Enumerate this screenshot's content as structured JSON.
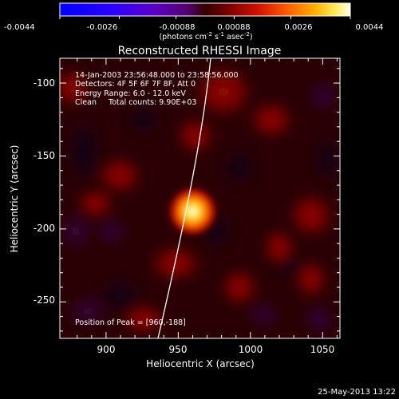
{
  "colorbar": {
    "tick_labels": [
      "-0.0044",
      "-0.0026",
      "-0.00088",
      "0.00088",
      "0.0026",
      "0.0044"
    ],
    "range": [
      -0.0044,
      0.0044
    ],
    "unit_prefix": "(photons cm",
    "unit_exp1": "-2",
    "unit_mid": " s",
    "unit_exp2": "-1",
    "unit_mid2": " asec",
    "unit_exp3": "-2",
    "unit_suffix": ")"
  },
  "image": {
    "title": "Reconstructed RHESSI Image",
    "xlabel": "Heliocentric X (arcsec)",
    "ylabel": "Heliocentric Y (arcsec)",
    "xlim": [
      868,
      1062
    ],
    "ylim": [
      -275,
      -83
    ],
    "xticks": [
      "900",
      "950",
      "1000",
      "1050"
    ],
    "yticks": [
      "-100",
      "-150",
      "-200",
      "-250"
    ],
    "info_lines": [
      "14-Jan-2003 23:56:48.000 to 23:58:56.000",
      "Detectors: 4F 5F 6F 7F 8F, Att 0",
      "Energy Range: 6.0 - 12.0 keV",
      "Clean     Total counts: 9.90E+03"
    ],
    "peak_label": "Position of Peak = [960,-188]",
    "peak": [
      960,
      -188
    ],
    "limb_color": "#ffffff"
  },
  "footer": {
    "timestamp": "25-May-2013 13:22"
  }
}
